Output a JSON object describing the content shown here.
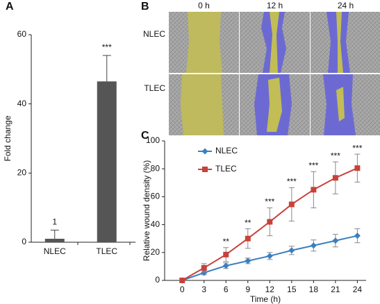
{
  "chart_data": [
    {
      "type": "bar",
      "panel_label": "A",
      "ylabel": "Fold change",
      "categories": [
        "NLEC",
        "TLEC"
      ],
      "values": [
        1,
        46.5
      ],
      "errors": [
        2.5,
        7.5
      ],
      "annotations": [
        "1",
        "***"
      ],
      "color": "#555555",
      "ylim": [
        0,
        60
      ],
      "yticks": [
        0,
        20,
        40,
        60
      ]
    },
    {
      "type": "line",
      "panel_label": "C",
      "xlabel": "Time (h)",
      "ylabel": "Relative wound density (%)",
      "x": [
        0,
        3,
        6,
        9,
        12,
        15,
        18,
        21,
        24
      ],
      "series": [
        {
          "name": "NLEC",
          "color": "#3a7fc1",
          "marker": "diamond",
          "values": [
            0,
            5.5,
            10.5,
            14,
            17.5,
            21.5,
            25,
            28.5,
            32
          ],
          "errors": [
            0,
            1.5,
            2,
            2,
            2.5,
            3,
            4,
            4.5,
            5
          ]
        },
        {
          "name": "TLEC",
          "color": "#c8413b",
          "marker": "square",
          "values": [
            0,
            9,
            18.5,
            30,
            42,
            54.5,
            65,
            73.5,
            80.5
          ],
          "errors": [
            0,
            3,
            5,
            7,
            10,
            12,
            13,
            11.5,
            10
          ]
        }
      ],
      "annotations": [
        null,
        null,
        "**",
        "**",
        "***",
        "***",
        "***",
        "***",
        "***"
      ],
      "xlim": [
        -2.4,
        25.2
      ],
      "xticks": [
        0,
        3,
        6,
        9,
        12,
        15,
        18,
        21,
        24
      ],
      "ylim": [
        0,
        100
      ],
      "yticks": [
        0,
        20,
        40,
        60,
        80,
        100
      ],
      "legend": "upper left"
    }
  ],
  "image_grid": {
    "panel_label": "B",
    "columns": [
      "0 h",
      "12 h",
      "24 h"
    ],
    "rows": [
      "NLEC",
      "TLEC"
    ]
  }
}
